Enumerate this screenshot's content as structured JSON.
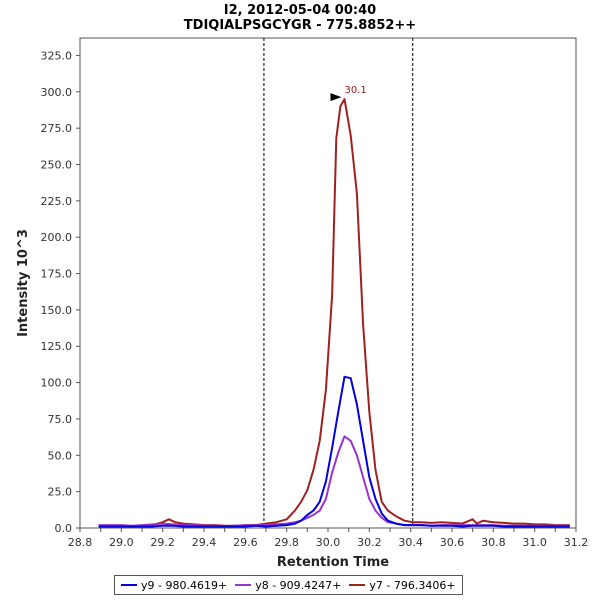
{
  "chart_data": {
    "type": "line",
    "title": "I2, 2012-05-04 00:40",
    "subtitle": "TDIQIALPSGCYGR - 775.8852++",
    "xlabel": "Retention Time",
    "ylabel": "Intensity 10^3",
    "xlim": [
      28.8,
      31.2
    ],
    "ylim": [
      0,
      337
    ],
    "x_ticks": [
      "28.8",
      "28.9",
      "29.0",
      "29.1",
      "29.2",
      "29.3",
      "29.4",
      "29.5",
      "29.6",
      "29.7",
      "29.8",
      "29.9",
      "30.0",
      "30.1",
      "30.2",
      "30.3",
      "30.4",
      "30.5",
      "30.6",
      "30.7",
      "30.8",
      "30.9",
      "31.0",
      "31.1",
      "31.2"
    ],
    "y_ticks": [
      "0.0",
      "25.0",
      "50.0",
      "75.0",
      "100.0",
      "125.0",
      "150.0",
      "175.0",
      "200.0",
      "225.0",
      "250.0",
      "275.0",
      "300.0",
      "325.0"
    ],
    "boundary_lines_x": [
      29.69,
      30.41
    ],
    "legend_position": "bottom",
    "grid": false,
    "annotations": [
      {
        "text": "30.1",
        "x": 30.07,
        "y": 295,
        "color": "#8b1a1a"
      }
    ],
    "series": [
      {
        "name": "y9 - 980.4619+",
        "color": "#0000e0",
        "x": [
          28.89,
          28.95,
          29.0,
          29.05,
          29.1,
          29.15,
          29.2,
          29.25,
          29.3,
          29.35,
          29.4,
          29.45,
          29.5,
          29.55,
          29.6,
          29.65,
          29.7,
          29.75,
          29.8,
          29.84,
          29.87,
          29.9,
          29.93,
          29.96,
          29.99,
          30.02,
          30.05,
          30.08,
          30.11,
          30.14,
          30.17,
          30.2,
          30.23,
          30.26,
          30.29,
          30.33,
          30.37,
          30.41,
          30.45,
          30.5,
          30.55,
          30.6,
          30.65,
          30.7,
          30.75,
          30.8,
          30.85,
          30.9,
          30.95,
          31.0,
          31.05,
          31.1,
          31.17
        ],
        "y": [
          1,
          1,
          1,
          1,
          1,
          1,
          1.5,
          1.5,
          1,
          1,
          1,
          1,
          1,
          1,
          1,
          1.5,
          1,
          1.5,
          2,
          3,
          5,
          9,
          12,
          18,
          32,
          55,
          80,
          104,
          103,
          85,
          60,
          35,
          20,
          10,
          5,
          3,
          2,
          2,
          2,
          1.5,
          1.5,
          1.5,
          1,
          1.5,
          1.5,
          1.5,
          1,
          1,
          1,
          1,
          1,
          1,
          1
        ]
      },
      {
        "name": "y8 - 909.4247+",
        "color": "#9933cc",
        "x": [
          28.89,
          28.95,
          29.0,
          29.05,
          29.1,
          29.15,
          29.2,
          29.25,
          29.3,
          29.35,
          29.4,
          29.45,
          29.5,
          29.55,
          29.6,
          29.65,
          29.7,
          29.75,
          29.8,
          29.84,
          29.87,
          29.9,
          29.93,
          29.96,
          29.99,
          30.02,
          30.05,
          30.08,
          30.11,
          30.14,
          30.17,
          30.2,
          30.23,
          30.26,
          30.29,
          30.33,
          30.37,
          30.41,
          30.45,
          30.5,
          30.55,
          30.6,
          30.65,
          30.7,
          30.75,
          30.8,
          30.85,
          30.9,
          30.95,
          31.0,
          31.05,
          31.1,
          31.17
        ],
        "y": [
          2,
          2,
          2,
          1.5,
          2,
          2.5,
          3,
          2.5,
          2,
          2,
          1.5,
          1.5,
          1,
          1.5,
          2,
          2,
          2,
          2.5,
          3,
          4,
          5,
          7,
          9,
          12,
          20,
          38,
          52,
          63,
          60,
          50,
          35,
          20,
          12,
          7,
          4,
          3,
          2,
          2,
          2,
          1.5,
          2,
          2,
          2,
          2,
          2,
          2,
          1.5,
          1.5,
          1.5,
          1.5,
          1.5,
          1.5,
          1.5
        ]
      },
      {
        "name": "y7 - 796.3406+",
        "color": "#a02020",
        "x": [
          28.89,
          28.95,
          29.0,
          29.05,
          29.1,
          29.15,
          29.2,
          29.23,
          29.26,
          29.3,
          29.35,
          29.4,
          29.45,
          29.5,
          29.55,
          29.6,
          29.65,
          29.7,
          29.75,
          29.8,
          29.84,
          29.87,
          29.9,
          29.93,
          29.96,
          29.99,
          30.02,
          30.04,
          30.06,
          30.08,
          30.11,
          30.14,
          30.17,
          30.2,
          30.23,
          30.26,
          30.29,
          30.33,
          30.37,
          30.41,
          30.45,
          30.5,
          30.55,
          30.6,
          30.65,
          30.7,
          30.72,
          30.75,
          30.8,
          30.85,
          30.9,
          30.95,
          31.0,
          31.05,
          31.1,
          31.17
        ],
        "y": [
          1.5,
          1.5,
          1,
          1,
          1,
          2,
          4,
          6,
          4,
          3,
          2.5,
          2,
          2,
          1.5,
          1.5,
          2,
          2,
          3,
          4,
          6,
          12,
          18,
          26,
          40,
          60,
          95,
          160,
          268,
          290,
          295,
          270,
          230,
          140,
          80,
          40,
          18,
          12,
          8,
          5,
          4,
          4,
          3.5,
          4,
          3.5,
          3,
          6,
          3,
          5,
          4,
          3.5,
          3,
          3,
          2.5,
          2.5,
          2,
          2
        ]
      }
    ]
  }
}
